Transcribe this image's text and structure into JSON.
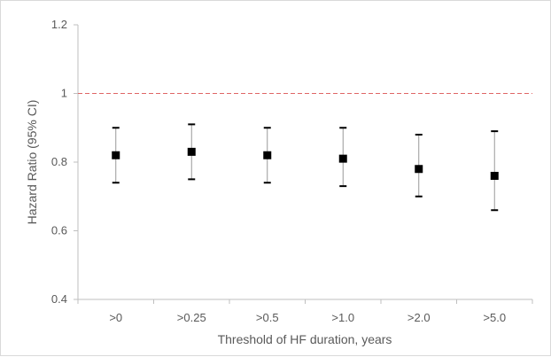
{
  "chart_data": {
    "type": "scatter",
    "title": "",
    "xlabel": "Threshold of HF duration, years",
    "ylabel": "Hazard Ratio (95% CI)",
    "categories": [
      ">0",
      ">0.25",
      ">0.5",
      ">1.0",
      ">2.0",
      ">5.0"
    ],
    "series": [
      {
        "values": [
          0.82,
          0.83,
          0.82,
          0.81,
          0.78,
          0.76
        ],
        "ci_lower": [
          0.74,
          0.75,
          0.74,
          0.73,
          0.7,
          0.66
        ],
        "ci_upper": [
          0.9,
          0.91,
          0.9,
          0.9,
          0.88,
          0.89
        ],
        "color": "#000000"
      }
    ],
    "ylim": [
      0.4,
      1.2
    ],
    "yticks": [
      "0.4",
      "0.6",
      "0.8",
      "1",
      "1.2"
    ],
    "reference_line": {
      "y": 1.0,
      "color": "#e06666",
      "style": "dashed"
    },
    "grid": false,
    "legend": "none"
  }
}
